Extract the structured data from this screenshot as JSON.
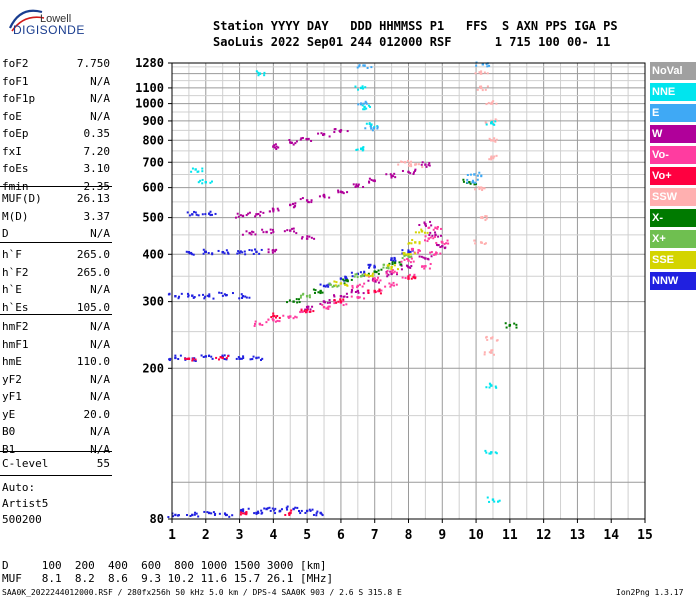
{
  "logo": {
    "top": "Lowell",
    "main": "DIGISONDE"
  },
  "header": {
    "line1": "Station YYYY DAY   DDD HHMMSS P1   FFS  S AXN PPS IGA PS",
    "line2": "SaoLuis 2022 Sep01 244 012000 RSF      1 715 100 00- 11"
  },
  "params_group1": [
    {
      "name": "foF2",
      "value": "7.750"
    },
    {
      "name": "foF1",
      "value": "N/A"
    },
    {
      "name": "foF1p",
      "value": "N/A"
    },
    {
      "name": "foE",
      "value": "N/A"
    },
    {
      "name": "foEp",
      "value": "0.35"
    },
    {
      "name": "fxI",
      "value": "7.20"
    },
    {
      "name": "foEs",
      "value": "3.10"
    },
    {
      "name": "fmin",
      "value": "2.35"
    }
  ],
  "params_group2": [
    {
      "name": "MUF(D)",
      "value": "26.13"
    },
    {
      "name": "M(D)",
      "value": "3.37"
    },
    {
      "name": "D",
      "value": "N/A"
    }
  ],
  "params_group3": [
    {
      "name": "h`F",
      "value": "265.0"
    },
    {
      "name": "h`F2",
      "value": "265.0"
    },
    {
      "name": "h`E",
      "value": "N/A"
    },
    {
      "name": "h`Es",
      "value": "105.0"
    }
  ],
  "params_group4": [
    {
      "name": "hmF2",
      "value": "N/A"
    },
    {
      "name": "hmF1",
      "value": "N/A"
    },
    {
      "name": "hmE",
      "value": "110.0"
    },
    {
      "name": "yF2",
      "value": "N/A"
    },
    {
      "name": "yF1",
      "value": "N/A"
    },
    {
      "name": "yE",
      "value": "20.0"
    },
    {
      "name": "B0",
      "value": "N/A"
    },
    {
      "name": "B1",
      "value": "N/A"
    }
  ],
  "params_group5": [
    {
      "name": "C-level",
      "value": "55"
    }
  ],
  "auto": {
    "line1": "Auto:",
    "line2": "Artist5",
    "line3": "500200"
  },
  "legend": [
    {
      "label": "NoVal",
      "color": "#a0a0a0"
    },
    {
      "label": "NNE",
      "color": "#00e5ee"
    },
    {
      "label": "E",
      "color": "#3fa9f5"
    },
    {
      "label": "W",
      "color": "#b0009a"
    },
    {
      "label": "Vo-",
      "color": "#ff3ca0"
    },
    {
      "label": "Vo+",
      "color": "#ff0040"
    },
    {
      "label": "SSW",
      "color": "#ffb0b0"
    },
    {
      "label": "X-",
      "color": "#007a00"
    },
    {
      "label": "X+",
      "color": "#6fbf50"
    },
    {
      "label": "SSE",
      "color": "#d4d400"
    },
    {
      "label": "NNW",
      "color": "#2020e0"
    }
  ],
  "muf_table": {
    "d_row": "D     100  200  400  600  800 1000 1500 3000 [km]",
    "muf_row": "MUF   8.1  8.2  8.6  9.3 10.2 11.6 15.7 26.1 [MHz]"
  },
  "footer": {
    "left": "SAA0K_2022244012000.RSF / 280fx256h 50 kHz 5.0 km / DPS-4 SAA0K 903 / 2.6 S 315.8 E",
    "right": "Ion2Png 1.3.17"
  },
  "chart_data": {
    "type": "scatter",
    "title": "",
    "xlabel": "",
    "ylabel": "",
    "xlim": [
      1,
      15
    ],
    "ylim": [
      80,
      1280
    ],
    "y_scale": "log",
    "x_ticks": [
      1,
      2,
      3,
      4,
      5,
      6,
      7,
      8,
      9,
      10,
      11,
      12,
      13,
      14,
      15
    ],
    "y_ticks": [
      80,
      200,
      300,
      400,
      500,
      600,
      700,
      800,
      900,
      1000,
      1100,
      1280
    ],
    "grid": true,
    "legend_position": "right",
    "series": [
      {
        "name": "NNW",
        "color": "#2020e0",
        "points": [
          [
            1.1,
            82
          ],
          [
            1.6,
            82
          ],
          [
            2.1,
            83
          ],
          [
            2.6,
            82
          ],
          [
            3.1,
            84
          ],
          [
            3.5,
            83
          ],
          [
            3.8,
            85
          ],
          [
            4.2,
            84
          ],
          [
            4.6,
            85
          ],
          [
            5.0,
            84
          ],
          [
            5.4,
            83
          ],
          [
            1.1,
            213
          ],
          [
            1.5,
            212
          ],
          [
            2.0,
            215
          ],
          [
            2.5,
            214
          ],
          [
            3.0,
            212
          ],
          [
            3.5,
            213
          ],
          [
            1.1,
            310
          ],
          [
            1.6,
            311
          ],
          [
            2.1,
            310
          ],
          [
            2.6,
            312
          ],
          [
            3.1,
            310
          ],
          [
            1.5,
            405
          ],
          [
            2.0,
            406
          ],
          [
            2.5,
            405
          ],
          [
            3.0,
            404
          ],
          [
            3.5,
            406
          ],
          [
            1.6,
            510
          ],
          [
            2.1,
            512
          ],
          [
            5.5,
            330
          ],
          [
            6.0,
            345
          ],
          [
            6.5,
            355
          ],
          [
            7.0,
            370
          ],
          [
            7.5,
            390
          ],
          [
            8.0,
            405
          ]
        ]
      },
      {
        "name": "W",
        "color": "#b0009a",
        "points": [
          [
            3.1,
            505
          ],
          [
            3.5,
            510
          ],
          [
            4.0,
            525
          ],
          [
            4.5,
            540
          ],
          [
            5.0,
            555
          ],
          [
            5.5,
            570
          ],
          [
            6.0,
            585
          ],
          [
            6.5,
            605
          ],
          [
            7.0,
            625
          ],
          [
            7.5,
            645
          ],
          [
            8.0,
            660
          ],
          [
            8.5,
            690
          ],
          [
            4.0,
            770
          ],
          [
            4.5,
            790
          ],
          [
            5.0,
            805
          ],
          [
            5.5,
            830
          ],
          [
            6.0,
            850
          ],
          [
            3.3,
            455
          ],
          [
            3.8,
            458
          ],
          [
            4.5,
            462
          ],
          [
            4.0,
            410
          ],
          [
            5.0,
            440
          ],
          [
            8.5,
            480
          ],
          [
            8.8,
            450
          ],
          [
            9.0,
            420
          ],
          [
            5.0,
            290
          ],
          [
            5.5,
            300
          ],
          [
            6.0,
            310
          ],
          [
            6.5,
            320
          ],
          [
            7.0,
            340
          ],
          [
            7.5,
            355
          ],
          [
            8.0,
            370
          ],
          [
            8.5,
            390
          ]
        ]
      },
      {
        "name": "Vo-",
        "color": "#ff3ca0",
        "points": [
          [
            3.6,
            262
          ],
          [
            4.0,
            268
          ],
          [
            4.5,
            274
          ],
          [
            5.0,
            282
          ],
          [
            5.5,
            290
          ],
          [
            6.0,
            298
          ],
          [
            6.5,
            308
          ],
          [
            7.0,
            318
          ],
          [
            7.5,
            332
          ],
          [
            8.0,
            348
          ],
          [
            8.5,
            372
          ],
          [
            8.8,
            400
          ],
          [
            9.0,
            430
          ],
          [
            6.5,
            330
          ],
          [
            7.0,
            345
          ],
          [
            7.5,
            360
          ],
          [
            8.0,
            385
          ],
          [
            8.3,
            410
          ],
          [
            8.6,
            440
          ],
          [
            8.8,
            470
          ]
        ]
      },
      {
        "name": "Vo+",
        "color": "#ff0040",
        "points": [
          [
            4.0,
            275
          ],
          [
            5.0,
            285
          ],
          [
            6.0,
            300
          ],
          [
            7.0,
            320
          ],
          [
            8.0,
            345
          ],
          [
            1.5,
            212
          ],
          [
            2.5,
            213
          ],
          [
            3.2,
            83
          ],
          [
            4.5,
            83
          ]
        ]
      },
      {
        "name": "SSW",
        "color": "#ffb0b0",
        "points": [
          [
            10.15,
            1200
          ],
          [
            10.15,
            1100
          ],
          [
            10.15,
            600
          ],
          [
            10.15,
            500
          ],
          [
            10.15,
            430
          ],
          [
            10.45,
            1000
          ],
          [
            10.45,
            900
          ],
          [
            10.45,
            800
          ],
          [
            10.45,
            720
          ],
          [
            10.45,
            240
          ],
          [
            10.45,
            220
          ],
          [
            7.9,
            700
          ],
          [
            8.2,
            690
          ]
        ]
      },
      {
        "name": "X-",
        "color": "#007a00",
        "points": [
          [
            4.6,
            300
          ],
          [
            5.4,
            320
          ],
          [
            6.2,
            340
          ],
          [
            7.0,
            360
          ],
          [
            7.6,
            380
          ],
          [
            9.8,
            620
          ],
          [
            11.0,
            260
          ]
        ]
      },
      {
        "name": "X+",
        "color": "#6fbf50",
        "points": [
          [
            5.0,
            310
          ],
          [
            5.8,
            330
          ],
          [
            6.6,
            350
          ],
          [
            7.4,
            372
          ],
          [
            8.0,
            395
          ]
        ]
      },
      {
        "name": "SSE",
        "color": "#d4d400",
        "points": [
          [
            6.0,
            335
          ],
          [
            6.8,
            352
          ],
          [
            7.5,
            370
          ],
          [
            8.0,
            400
          ],
          [
            8.2,
            430
          ],
          [
            8.4,
            460
          ]
        ]
      },
      {
        "name": "NNE",
        "color": "#00e5ee",
        "points": [
          [
            1.7,
            670
          ],
          [
            2.0,
            620
          ],
          [
            3.6,
            1200
          ],
          [
            6.6,
            1100
          ],
          [
            6.7,
            980
          ],
          [
            6.9,
            880
          ],
          [
            6.6,
            760
          ],
          [
            10.45,
            890
          ],
          [
            10.45,
            180
          ],
          [
            10.45,
            120
          ],
          [
            10.5,
            90
          ]
        ]
      },
      {
        "name": "E",
        "color": "#3fa9f5",
        "points": [
          [
            6.6,
            1000
          ],
          [
            6.9,
            860
          ],
          [
            9.9,
            620
          ],
          [
            9.95,
            650
          ],
          [
            6.7,
            1260
          ],
          [
            10.2,
            1270
          ]
        ]
      }
    ]
  }
}
